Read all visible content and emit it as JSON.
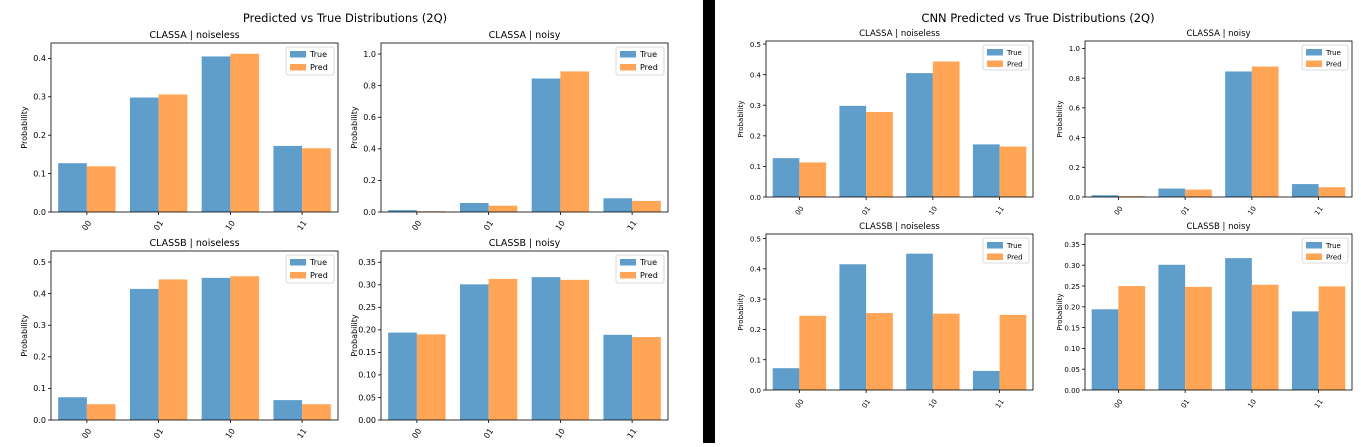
{
  "figures": [
    {
      "title": "Predicted vs True Distributions (2Q)"
    },
    {
      "title": "CNN Predicted vs True Distributions (2Q)"
    }
  ],
  "colors": {
    "true": "#5f9ecb",
    "pred": "#ffa555"
  },
  "chart_data": [
    {
      "figure": "Predicted vs True Distributions (2Q)",
      "type": "bar",
      "title": "CLASSA | noiseless",
      "ylabel": "Probability",
      "categories": [
        "00",
        "01",
        "10",
        "11"
      ],
      "ylim": [
        0,
        0.44
      ],
      "yticks": [
        "0.0",
        "0.1",
        "0.2",
        "0.3",
        "0.4"
      ],
      "tickvals": [
        0,
        0.1,
        0.2,
        0.3,
        0.4
      ],
      "legend": "top-right",
      "series": [
        {
          "name": "True",
          "values": [
            0.127,
            0.298,
            0.405,
            0.172
          ]
        },
        {
          "name": "Pred",
          "values": [
            0.119,
            0.306,
            0.412,
            0.166
          ]
        }
      ]
    },
    {
      "figure": "Predicted vs True Distributions (2Q)",
      "type": "bar",
      "title": "CLASSA | noisy",
      "ylabel": "Probability",
      "categories": [
        "00",
        "01",
        "10",
        "11"
      ],
      "ylim": [
        0,
        1.07
      ],
      "yticks": [
        "0.0",
        "0.2",
        "0.4",
        "0.6",
        "0.8",
        "1.0"
      ],
      "tickvals": [
        0,
        0.2,
        0.4,
        0.6,
        0.8,
        1.0
      ],
      "legend": "top-right",
      "series": [
        {
          "name": "True",
          "values": [
            0.012,
            0.057,
            0.845,
            0.087
          ]
        },
        {
          "name": "Pred",
          "values": [
            0.005,
            0.04,
            0.89,
            0.07
          ]
        }
      ]
    },
    {
      "figure": "Predicted vs True Distributions (2Q)",
      "type": "bar",
      "title": "CLASSB | noiseless",
      "ylabel": "Probability",
      "categories": [
        "00",
        "01",
        "10",
        "11"
      ],
      "ylim": [
        0,
        0.535
      ],
      "yticks": [
        "0.0",
        "0.1",
        "0.2",
        "0.3",
        "0.4",
        "0.5"
      ],
      "tickvals": [
        0,
        0.1,
        0.2,
        0.3,
        0.4,
        0.5
      ],
      "legend": "top-right",
      "series": [
        {
          "name": "True",
          "values": [
            0.072,
            0.415,
            0.45,
            0.063
          ]
        },
        {
          "name": "Pred",
          "values": [
            0.05,
            0.445,
            0.455,
            0.05
          ]
        }
      ]
    },
    {
      "figure": "Predicted vs True Distributions (2Q)",
      "type": "bar",
      "title": "CLASSB | noisy",
      "ylabel": "Probability",
      "categories": [
        "00",
        "01",
        "10",
        "11"
      ],
      "ylim": [
        0,
        0.375
      ],
      "yticks": [
        "0.00",
        "0.05",
        "0.10",
        "0.15",
        "0.20",
        "0.25",
        "0.30",
        "0.35"
      ],
      "tickvals": [
        0,
        0.05,
        0.1,
        0.15,
        0.2,
        0.25,
        0.3,
        0.35
      ],
      "legend": "top-right",
      "series": [
        {
          "name": "True",
          "values": [
            0.194,
            0.301,
            0.317,
            0.189
          ]
        },
        {
          "name": "Pred",
          "values": [
            0.19,
            0.313,
            0.311,
            0.184
          ]
        }
      ]
    },
    {
      "figure": "CNN Predicted vs True Distributions (2Q)",
      "type": "bar",
      "title": "CLASSA | noiseless",
      "ylabel": "Probability",
      "categories": [
        "00",
        "01",
        "10",
        "11"
      ],
      "ylim": [
        0,
        0.51
      ],
      "yticks": [
        "0.0",
        "0.1",
        "0.2",
        "0.3",
        "0.4",
        "0.5"
      ],
      "tickvals": [
        0,
        0.1,
        0.2,
        0.3,
        0.4,
        0.5
      ],
      "legend": "top-right",
      "series": [
        {
          "name": "True",
          "values": [
            0.127,
            0.298,
            0.405,
            0.172
          ]
        },
        {
          "name": "Pred",
          "values": [
            0.113,
            0.278,
            0.443,
            0.165
          ]
        }
      ]
    },
    {
      "figure": "CNN Predicted vs True Distributions (2Q)",
      "type": "bar",
      "title": "CLASSA | noisy",
      "ylabel": "Probability",
      "categories": [
        "00",
        "01",
        "10",
        "11"
      ],
      "ylim": [
        0,
        1.05
      ],
      "yticks": [
        "0.0",
        "0.2",
        "0.4",
        "0.6",
        "0.8",
        "1.0"
      ],
      "tickvals": [
        0,
        0.2,
        0.4,
        0.6,
        0.8,
        1.0
      ],
      "legend": "top-right",
      "series": [
        {
          "name": "True",
          "values": [
            0.012,
            0.057,
            0.845,
            0.087
          ]
        },
        {
          "name": "Pred",
          "values": [
            0.006,
            0.05,
            0.878,
            0.066
          ]
        }
      ]
    },
    {
      "figure": "CNN Predicted vs True Distributions (2Q)",
      "type": "bar",
      "title": "CLASSB | noiseless",
      "ylabel": "Probability",
      "categories": [
        "00",
        "01",
        "10",
        "11"
      ],
      "ylim": [
        0,
        0.515
      ],
      "yticks": [
        "0.0",
        "0.1",
        "0.2",
        "0.3",
        "0.4",
        "0.5"
      ],
      "tickvals": [
        0,
        0.1,
        0.2,
        0.3,
        0.4,
        0.5
      ],
      "legend": "top-right",
      "series": [
        {
          "name": "True",
          "values": [
            0.072,
            0.415,
            0.45,
            0.063
          ]
        },
        {
          "name": "Pred",
          "values": [
            0.245,
            0.254,
            0.252,
            0.248
          ]
        }
      ]
    },
    {
      "figure": "CNN Predicted vs True Distributions (2Q)",
      "type": "bar",
      "title": "CLASSB | noisy",
      "ylabel": "Probability",
      "categories": [
        "00",
        "01",
        "10",
        "11"
      ],
      "ylim": [
        0,
        0.375
      ],
      "yticks": [
        "0.00",
        "0.05",
        "0.10",
        "0.15",
        "0.20",
        "0.25",
        "0.30",
        "0.35"
      ],
      "tickvals": [
        0,
        0.05,
        0.1,
        0.15,
        0.2,
        0.25,
        0.3,
        0.35
      ],
      "legend": "top-right",
      "series": [
        {
          "name": "True",
          "values": [
            0.194,
            0.301,
            0.317,
            0.189
          ]
        },
        {
          "name": "Pred",
          "values": [
            0.25,
            0.248,
            0.253,
            0.249
          ]
        }
      ]
    }
  ]
}
